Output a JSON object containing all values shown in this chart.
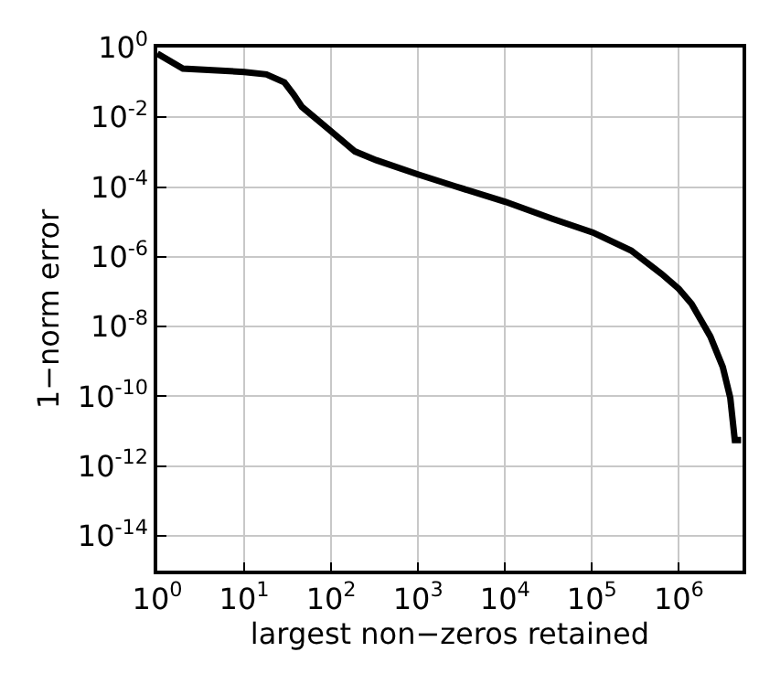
{
  "chart_data": {
    "type": "line",
    "xlabel": "largest non−zeros retained",
    "ylabel": "1−norm error",
    "log": "xy",
    "grid": true,
    "marker": "none",
    "line_style": "solid",
    "xlim": [
      1,
      5400000
    ],
    "ylim": [
      1e-15,
      1
    ],
    "xticks": [
      {
        "value": 1,
        "label": "10$^{0}$"
      },
      {
        "value": 10,
        "label": "10$^{1}$"
      },
      {
        "value": 100,
        "label": "10$^{2}$"
      },
      {
        "value": 1000,
        "label": "10$^{3}$"
      },
      {
        "value": 10000,
        "label": "10$^{4}$"
      },
      {
        "value": 100000,
        "label": "10$^{5}$"
      },
      {
        "value": 1000000,
        "label": "10$^{6}$"
      }
    ],
    "yticks": [
      {
        "value": 1,
        "label": "10$^{0}$"
      },
      {
        "value": 0.01,
        "label": "10$^{-2}$"
      },
      {
        "value": 0.0001,
        "label": "10$^{-4}$"
      },
      {
        "value": 1e-06,
        "label": "10$^{-6}$"
      },
      {
        "value": 1e-08,
        "label": "10$^{-8}$"
      },
      {
        "value": 1e-10,
        "label": "10$^{-10}$"
      },
      {
        "value": 1e-12,
        "label": "10$^{-12}$"
      },
      {
        "value": 1e-14,
        "label": "10$^{-14}$"
      }
    ],
    "series": [
      {
        "color": "#000000",
        "x": [
          1,
          1.97,
          10,
          18,
          29,
          37,
          46,
          91,
          188,
          330,
          1000,
          2680,
          10000,
          35000,
          102000,
          283000,
          635000,
          1000000,
          1400000,
          2300000,
          3200000,
          3900000,
          4400000,
          5200000
        ],
        "values": [
          0.67,
          0.25,
          0.2,
          0.17,
          0.1,
          0.045,
          0.02,
          0.0048,
          0.00105,
          0.00059,
          0.00023,
          0.000105,
          3.8e-05,
          1.23e-05,
          5e-06,
          1.5e-06,
          3.2e-07,
          1.2e-07,
          4.5e-08,
          5.2e-09,
          6.9e-10,
          9.1e-11,
          5.5e-12,
          5.5e-12
        ]
      }
    ]
  }
}
